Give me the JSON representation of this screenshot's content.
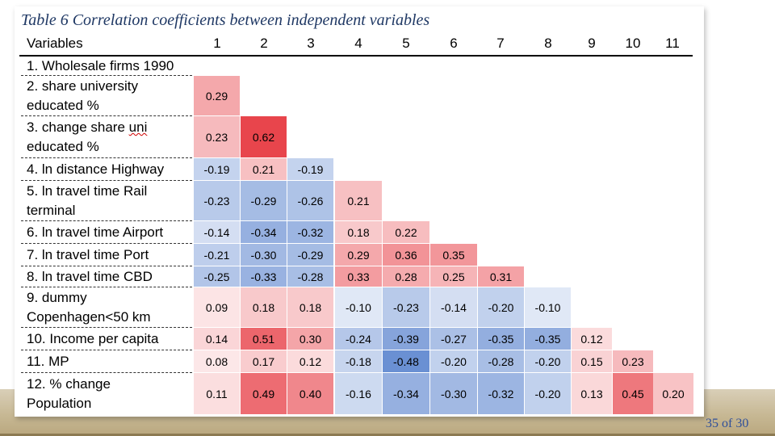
{
  "slide": {
    "title": "Table 6 Correlation coefficients between independent variables",
    "page_number": "35 of 30"
  },
  "table": {
    "header_first": "Variables",
    "columns": [
      "1",
      "2",
      "3",
      "4",
      "5",
      "6",
      "7",
      "8",
      "9",
      "10",
      "11"
    ],
    "variables": [
      [
        "1. Wholesale firms 1990"
      ],
      [
        "2. share university",
        "educated %"
      ],
      [
        "3. change share ",
        "uni",
        "educated %"
      ],
      [
        "4. ln distance Highway"
      ],
      [
        "5. ln travel time Rail",
        "terminal"
      ],
      [
        "6. ln travel time Airport"
      ],
      [
        "7. ln travel time Port"
      ],
      [
        "8. ln travel time CBD"
      ],
      [
        "9. dummy",
        "Copenhagen<50 km"
      ],
      [
        "10. Income per capita"
      ],
      [
        "11. MP"
      ],
      [
        "12. % change",
        "Population"
      ]
    ],
    "rows": [
      [],
      [
        "0.29"
      ],
      [
        "0.23",
        "0.62"
      ],
      [
        "-0.19",
        "0.21",
        "-0.19"
      ],
      [
        "-0.23",
        "-0.29",
        "-0.26",
        "0.21"
      ],
      [
        "-0.14",
        "-0.34",
        "-0.32",
        "0.18",
        "0.22"
      ],
      [
        "-0.21",
        "-0.30",
        "-0.29",
        "0.29",
        "0.36",
        "0.35"
      ],
      [
        "-0.25",
        "-0.33",
        "-0.28",
        "0.33",
        "0.28",
        "0.25",
        "0.31"
      ],
      [
        "0.09",
        "0.18",
        "0.18",
        "-0.10",
        "-0.23",
        "-0.14",
        "-0.20",
        "-0.10"
      ],
      [
        "0.14",
        "0.51",
        "0.30",
        "-0.24",
        "-0.39",
        "-0.27",
        "-0.35",
        "-0.35",
        "0.12"
      ],
      [
        "0.08",
        "0.17",
        "0.12",
        "-0.18",
        "-0.48",
        "-0.20",
        "-0.28",
        "-0.20",
        "0.15",
        "0.23"
      ],
      [
        "0.11",
        "0.49",
        "0.40",
        "-0.16",
        "-0.34",
        "-0.30",
        "-0.32",
        "-0.20",
        "0.13",
        "0.45",
        "0.20"
      ]
    ]
  },
  "colors": {
    "positive": "#e8454c",
    "negative": "#3f6fc6",
    "title": "#1f3864",
    "page_number": "#2f4f9a"
  }
}
